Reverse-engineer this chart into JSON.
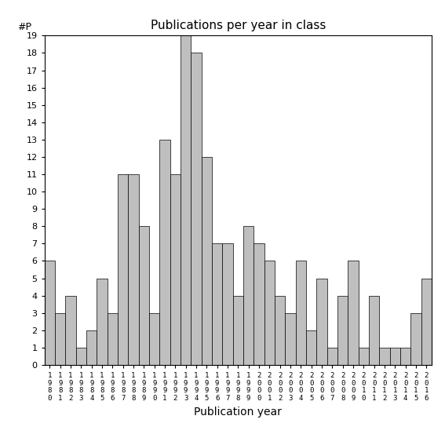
{
  "years": [
    1980,
    1981,
    1982,
    1983,
    1984,
    1985,
    1986,
    1987,
    1988,
    1989,
    1990,
    1991,
    1992,
    1993,
    1994,
    1995,
    1996,
    1997,
    1998,
    1999,
    2000,
    2001,
    2002,
    2003,
    2004,
    2005,
    2006,
    2007,
    2008,
    2009,
    2010,
    2011,
    2012,
    2013,
    2014,
    2015,
    2016
  ],
  "values": [
    6,
    3,
    4,
    1,
    2,
    5,
    3,
    11,
    11,
    8,
    3,
    13,
    11,
    19,
    18,
    12,
    7,
    7,
    4,
    8,
    7,
    6,
    4,
    3,
    6,
    2,
    5,
    1,
    4,
    6,
    1,
    4,
    1,
    1,
    1,
    3,
    5
  ],
  "bar_color": "#bfbfbf",
  "bar_edgecolor": "#000000",
  "title": "Publications per year in class",
  "xlabel": "Publication year",
  "ylabel_label": "#P",
  "ylim": [
    0,
    19
  ],
  "yticks": [
    0,
    1,
    2,
    3,
    4,
    5,
    6,
    7,
    8,
    9,
    10,
    11,
    12,
    13,
    14,
    15,
    16,
    17,
    18,
    19
  ],
  "background_color": "#ffffff",
  "title_fontsize": 11,
  "tick_fontsize": 8,
  "xlabel_fontsize": 10
}
